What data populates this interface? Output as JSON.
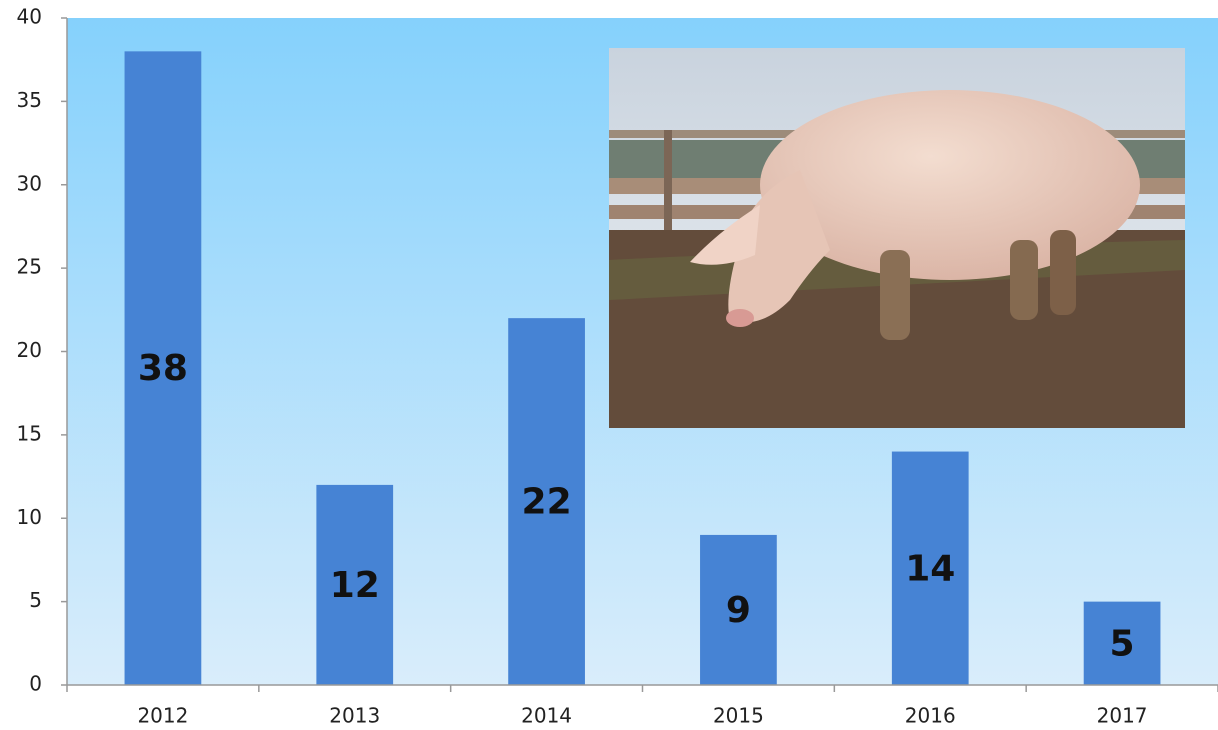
{
  "chart_data": {
    "type": "bar",
    "categories": [
      "2012",
      "2013",
      "2014",
      "2015",
      "2016",
      "2017"
    ],
    "values": [
      38,
      12,
      22,
      9,
      14,
      5
    ],
    "color": "#4683d4",
    "ylim": [
      0,
      40
    ],
    "yticks": [
      0,
      5,
      10,
      15,
      20,
      25,
      30,
      35,
      40
    ]
  }
}
